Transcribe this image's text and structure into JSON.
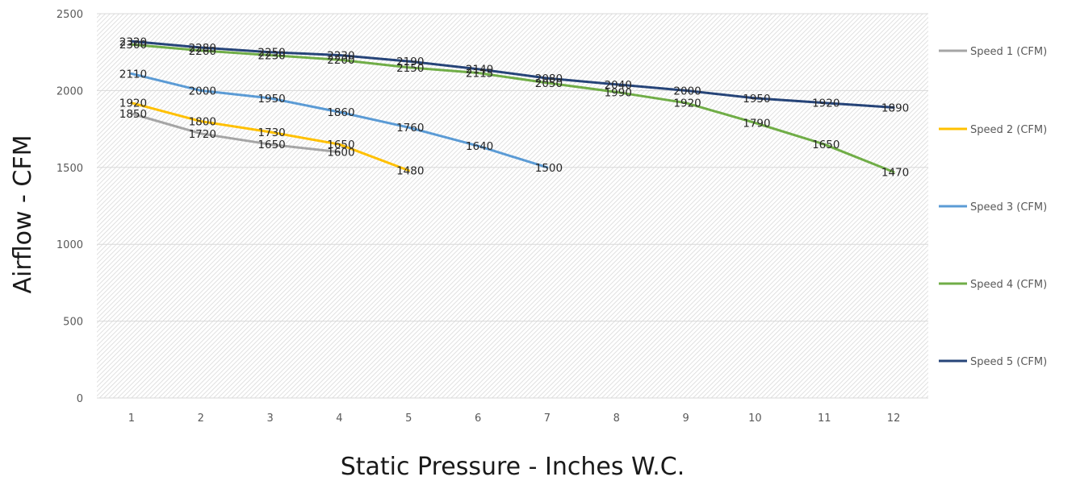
{
  "chart_data": {
    "type": "line",
    "x": [
      1,
      2,
      3,
      4,
      5,
      6,
      7,
      8,
      9,
      10,
      11,
      12
    ],
    "xlabel": "Static Pressure - Inches W.C.",
    "ylabel": "Airflow - CFM",
    "ylim": [
      0,
      2500
    ],
    "yticks": [
      0,
      500,
      1000,
      1500,
      2000,
      2500
    ],
    "grid": true,
    "legend_position": "right",
    "series": [
      {
        "name": "Speed 1 (CFM)",
        "color": "#a5a5a5",
        "values": [
          1850,
          1720,
          1650,
          1600,
          null,
          null,
          null,
          null,
          null,
          null,
          null,
          null
        ]
      },
      {
        "name": "Speed 2 (CFM)",
        "color": "#ffc000",
        "values": [
          1920,
          1800,
          1730,
          1650,
          1480,
          null,
          null,
          null,
          null,
          null,
          null,
          null
        ]
      },
      {
        "name": "Speed 3 (CFM)",
        "color": "#5b9bd5",
        "values": [
          2110,
          2000,
          1950,
          1860,
          1760,
          1640,
          1500,
          null,
          null,
          null,
          null,
          null
        ]
      },
      {
        "name": "Speed 4 (CFM)",
        "color": "#70ad47",
        "values": [
          2300,
          2260,
          2230,
          2200,
          2150,
          2115,
          2050,
          1990,
          1920,
          1790,
          1650,
          1470
        ]
      },
      {
        "name": "Speed 5 (CFM)",
        "color": "#264478",
        "values": [
          2320,
          2280,
          2250,
          2230,
          2190,
          2140,
          2080,
          2040,
          2000,
          1950,
          1920,
          1890
        ]
      }
    ]
  }
}
